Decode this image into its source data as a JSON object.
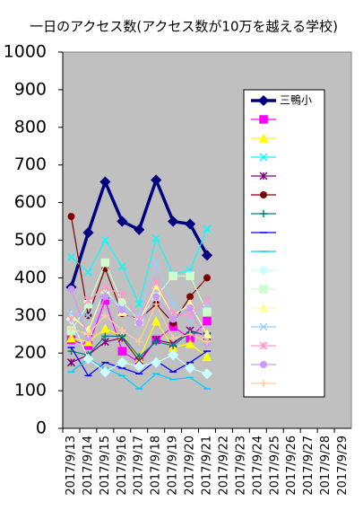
{
  "chart_data": {
    "type": "line",
    "title": "一日のアクセス数(アクセス数が10万を越える学校)",
    "categories": [
      "2017/9/13",
      "2017/9/14",
      "2017/9/15",
      "2017/9/16",
      "2017/9/17",
      "2017/9/18",
      "2017/9/19",
      "2017/9/20",
      "2017/9/21",
      "2017/9/22",
      "2017/9/23",
      "2017/9/24",
      "2017/9/25",
      "2017/9/26",
      "2017/9/27",
      "2017/9/28",
      "2017/9/29"
    ],
    "ylim": [
      0,
      1000
    ],
    "yticks": [
      0,
      100,
      200,
      300,
      400,
      500,
      600,
      700,
      800,
      900,
      1000
    ],
    "grid": false,
    "series": [
      {
        "name": "三鴨小",
        "color": "#000080",
        "marker": "diamond",
        "width": 3.5,
        "values": [
          375,
          520,
          655,
          550,
          528,
          660,
          550,
          543,
          460,
          null,
          null,
          null,
          null,
          null,
          null,
          null,
          null
        ]
      },
      {
        "color": "#ff00ff",
        "marker": "square",
        "values": [
          235,
          220,
          340,
          205,
          175,
          235,
          270,
          240,
          285,
          null,
          null,
          null,
          null,
          null,
          null,
          null,
          null
        ]
      },
      {
        "color": "#ffff00",
        "marker": "triangle",
        "values": [
          240,
          230,
          265,
          245,
          185,
          285,
          215,
          225,
          190,
          null,
          null,
          null,
          null,
          null,
          null,
          null,
          null
        ]
      },
      {
        "color": "#00ffff",
        "marker": "x",
        "values": [
          455,
          415,
          500,
          430,
          330,
          505,
          410,
          420,
          530,
          null,
          null,
          null,
          null,
          null,
          null,
          null,
          null
        ]
      },
      {
        "color": "#800080",
        "marker": "star",
        "values": [
          175,
          195,
          230,
          240,
          180,
          235,
          225,
          260,
          245,
          null,
          null,
          null,
          null,
          null,
          null,
          null,
          null
        ]
      },
      {
        "color": "#800000",
        "marker": "circle",
        "values": [
          563,
          300,
          425,
          305,
          290,
          330,
          280,
          350,
          400,
          null,
          null,
          null,
          null,
          null,
          null,
          null,
          null
        ]
      },
      {
        "color": "#008080",
        "marker": "plus",
        "values": [
          205,
          195,
          245,
          245,
          190,
          230,
          220,
          255,
          250,
          null,
          null,
          null,
          null,
          null,
          null,
          null,
          null
        ]
      },
      {
        "color": "#0000ff",
        "marker": "dash",
        "values": [
          215,
          140,
          175,
          160,
          145,
          180,
          150,
          175,
          205,
          null,
          null,
          null,
          null,
          null,
          null,
          null,
          null
        ]
      },
      {
        "color": "#00ccff",
        "marker": "dash",
        "values": [
          150,
          185,
          160,
          140,
          105,
          145,
          130,
          135,
          105,
          null,
          null,
          null,
          null,
          null,
          null,
          null,
          null
        ]
      },
      {
        "color": "#ccffff",
        "marker": "diamond",
        "values": [
          290,
          185,
          150,
          175,
          165,
          175,
          195,
          160,
          145,
          null,
          null,
          null,
          null,
          null,
          null,
          null,
          null
        ]
      },
      {
        "color": "#ccffcc",
        "marker": "square",
        "values": [
          260,
          330,
          440,
          335,
          290,
          350,
          405,
          405,
          310,
          null,
          null,
          null,
          null,
          null,
          null,
          null,
          null
        ]
      },
      {
        "color": "#ffff99",
        "marker": "triangle",
        "values": [
          300,
          260,
          370,
          310,
          285,
          380,
          300,
          330,
          250,
          null,
          null,
          null,
          null,
          null,
          null,
          null,
          null
        ]
      },
      {
        "color": "#99ccff",
        "marker": "x",
        "values": [
          305,
          300,
          360,
          320,
          300,
          440,
          330,
          290,
          330,
          null,
          null,
          null,
          null,
          null,
          null,
          null,
          null
        ]
      },
      {
        "color": "#ff99cc",
        "marker": "star",
        "values": [
          290,
          340,
          375,
          355,
          290,
          390,
          305,
          300,
          340,
          null,
          null,
          null,
          null,
          null,
          null,
          null,
          null
        ]
      },
      {
        "color": "#cc99ff",
        "marker": "circle",
        "values": [
          370,
          240,
          350,
          315,
          280,
          350,
          290,
          320,
          225,
          null,
          null,
          null,
          null,
          null,
          null,
          null,
          null
        ]
      },
      {
        "color": "#ffcc99",
        "marker": "plus",
        "values": [
          265,
          250,
          300,
          260,
          230,
          330,
          240,
          250,
          230,
          null,
          null,
          null,
          null,
          null,
          null,
          null,
          null
        ]
      }
    ]
  }
}
